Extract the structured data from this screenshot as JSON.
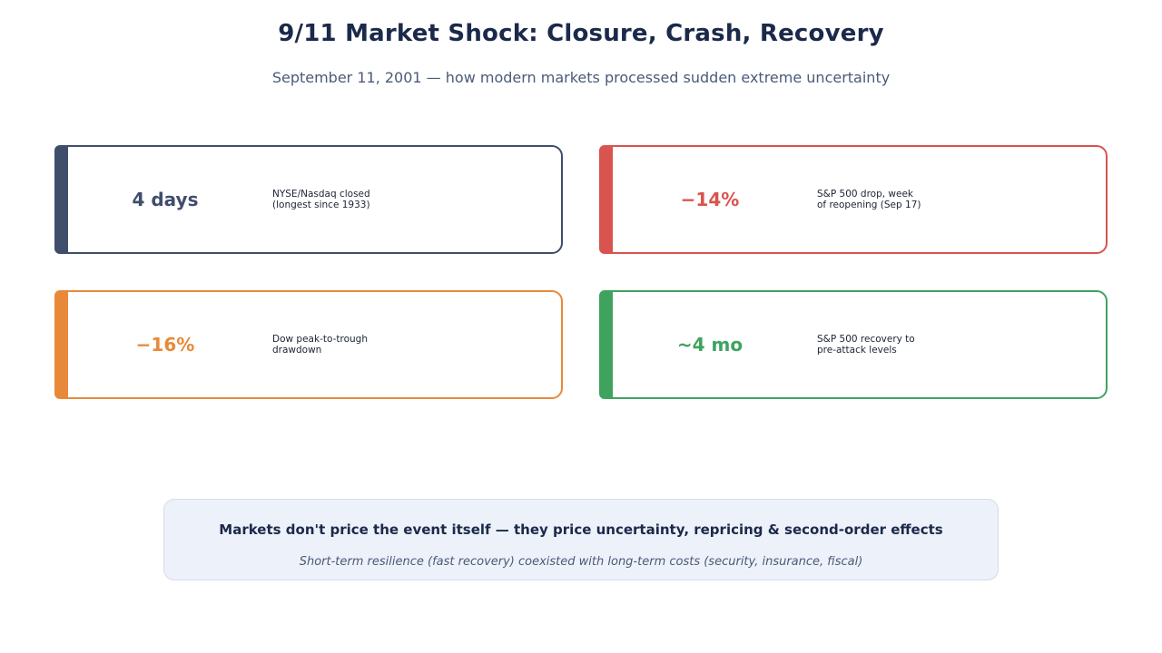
{
  "header": {
    "title": "9/11 Market Shock: Closure, Crash, Recovery",
    "subtitle": "September 11, 2001 — how modern markets processed sudden extreme uncertainty"
  },
  "cards": [
    {
      "value": "4 days",
      "description": "NYSE/Nasdaq closed\n(longest since 1933)",
      "color": "#3f4e6b"
    },
    {
      "value": "−14%",
      "description": "S&P 500 drop, week\nof reopening (Sep 17)",
      "color": "#d9534f"
    },
    {
      "value": "−16%",
      "description": "Dow peak-to-trough\ndrawdown",
      "color": "#e8893a"
    },
    {
      "value": "~4 mo",
      "description": "S&P 500 recovery to\npre-attack levels",
      "color": "#3fa35f"
    }
  ],
  "callout": {
    "headline": "Markets don't price the event itself — they price uncertainty, repricing & second-order effects",
    "note": "Short-term resilience (fast recovery) coexisted with long-term costs (security, insurance, fiscal)"
  }
}
